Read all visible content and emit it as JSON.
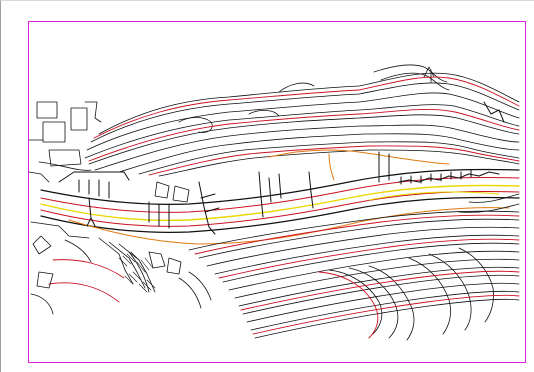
{
  "preview": {
    "kind": "cad-plot-preview",
    "paper_border_color": "#e020e0",
    "layers": {
      "contour_major": "#cc1122",
      "contour_minor": "#111111",
      "road_centerline": "#e8d800",
      "road_edge": "#e07a10",
      "structures": "#111111"
    }
  }
}
